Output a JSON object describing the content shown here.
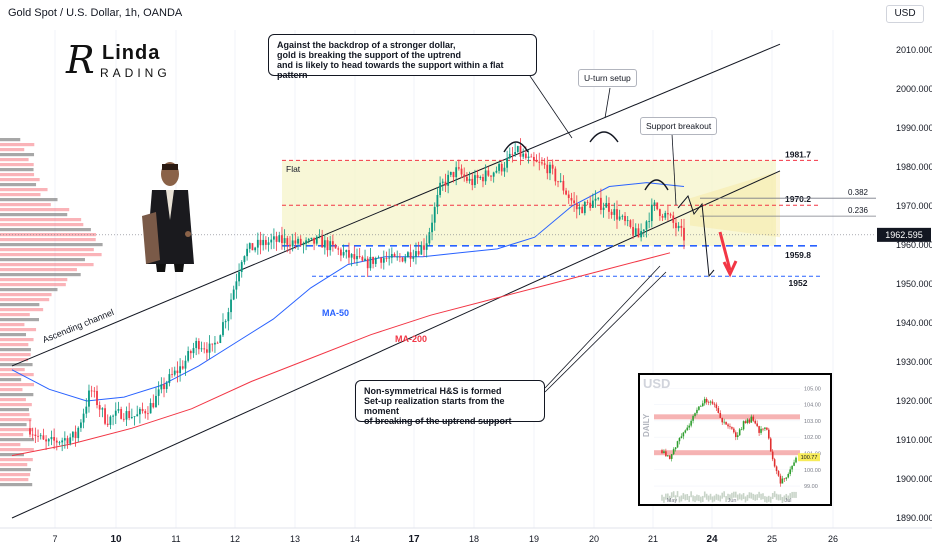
{
  "header": {
    "symbol_title": "Gold Spot / U.S. Dollar, 1h, OANDA",
    "currency_button": "USD"
  },
  "logo": {
    "mark": "R",
    "top_text": "Linda",
    "bottom_text": "RADING"
  },
  "annotations": {
    "top_callout": "Against the backdrop of a stronger dollar,\ngold is breaking the support of the uptrend\nand is likely to head towards the support within a flat pattern",
    "bottom_callout": "Non-symmetrical H&S is formed\nSet-up realization starts from the moment\nof breaking of the uptrend support",
    "uturn_tag": "U-turn setup",
    "breakout_tag": "Support breakout"
  },
  "colors": {
    "up_candle": "#089981",
    "down_candle": "#f23645",
    "ma50": "#2962ff",
    "ma200": "#f23645",
    "level_red": "#f23645",
    "level_blue": "#2962ff",
    "arrow": "#f23645",
    "flat_zone": "#f5f4c9"
  },
  "chart_data": {
    "type": "candlestick",
    "title": "Gold Spot / U.S. Dollar, 1h, OANDA",
    "ylim": [
      1887,
      2017
    ],
    "y_ticks": [
      "2010.000",
      "2000.000",
      "1990.000",
      "1980.000",
      "1970.000",
      "1960.000",
      "1950.000",
      "1940.000",
      "1930.000",
      "1920.000",
      "1910.000",
      "1900.000",
      "1890.000"
    ],
    "x_ticks": [
      "7",
      "10",
      "11",
      "12",
      "13",
      "14",
      "17",
      "18",
      "19",
      "20",
      "21",
      "24",
      "25",
      "26"
    ],
    "x_ticks_bold": [
      "10",
      "17",
      "24"
    ],
    "current_price": "1962.595",
    "series": [
      {
        "name": "Price",
        "path": [
          1913,
          1909,
          1910,
          1911,
          1923,
          1915,
          1917,
          1916,
          1919,
          1925,
          1929,
          1935,
          1933,
          1943,
          1958,
          1960,
          1961,
          1961,
          1960,
          1961,
          1959,
          1957,
          1955,
          1957,
          1956,
          1958,
          1960,
          1975,
          1979,
          1976,
          1978,
          1980,
          1984,
          1981,
          1980,
          1975,
          1969,
          1971,
          1970,
          1966,
          1962,
          1970,
          1967,
          1962
        ]
      },
      {
        "name": "MA-50",
        "path": [
          1928,
          1923,
          1920,
          1921,
          1924,
          1929,
          1935,
          1941,
          1949,
          1955,
          1957,
          1957,
          1958,
          1959,
          1962,
          1970,
          1975,
          1976,
          1975
        ]
      },
      {
        "name": "MA-200",
        "path": [
          1906,
          1909,
          1913,
          1918,
          1925,
          1931,
          1937,
          1942,
          1946,
          1950,
          1954,
          1958
        ]
      }
    ],
    "levels": [
      {
        "label": "1981.7",
        "value": 1981.7
      },
      {
        "label": "1970.2",
        "value": 1970.2
      },
      {
        "label": "1959.8",
        "value": 1959.8
      },
      {
        "label": "1952",
        "value": 1952
      }
    ],
    "fib_levels": [
      {
        "label": "0.382",
        "value": 1972
      },
      {
        "label": "0.236",
        "value": 1967.4
      }
    ],
    "labels": {
      "ma50": "MA-50",
      "ma200": "MA-200",
      "channel": "Ascending channel",
      "flat": "Flat"
    },
    "inset": {
      "title": "USD",
      "timeframe": "DAILY",
      "y_ticks": [
        "105.00",
        "104.00",
        "103.00",
        "102.00",
        "101.00",
        "100.00",
        "99.00"
      ],
      "x_ticks": [
        "May",
        "Jun",
        "Jul"
      ],
      "last_price": "100.77",
      "path": [
        101.2,
        100.8,
        101.6,
        102.2,
        103.0,
        103.8,
        104.3,
        104.0,
        103.1,
        102.6,
        102.0,
        102.9,
        103.1,
        102.4,
        102.7,
        100.3,
        99.2,
        99.9,
        100.8
      ]
    }
  }
}
